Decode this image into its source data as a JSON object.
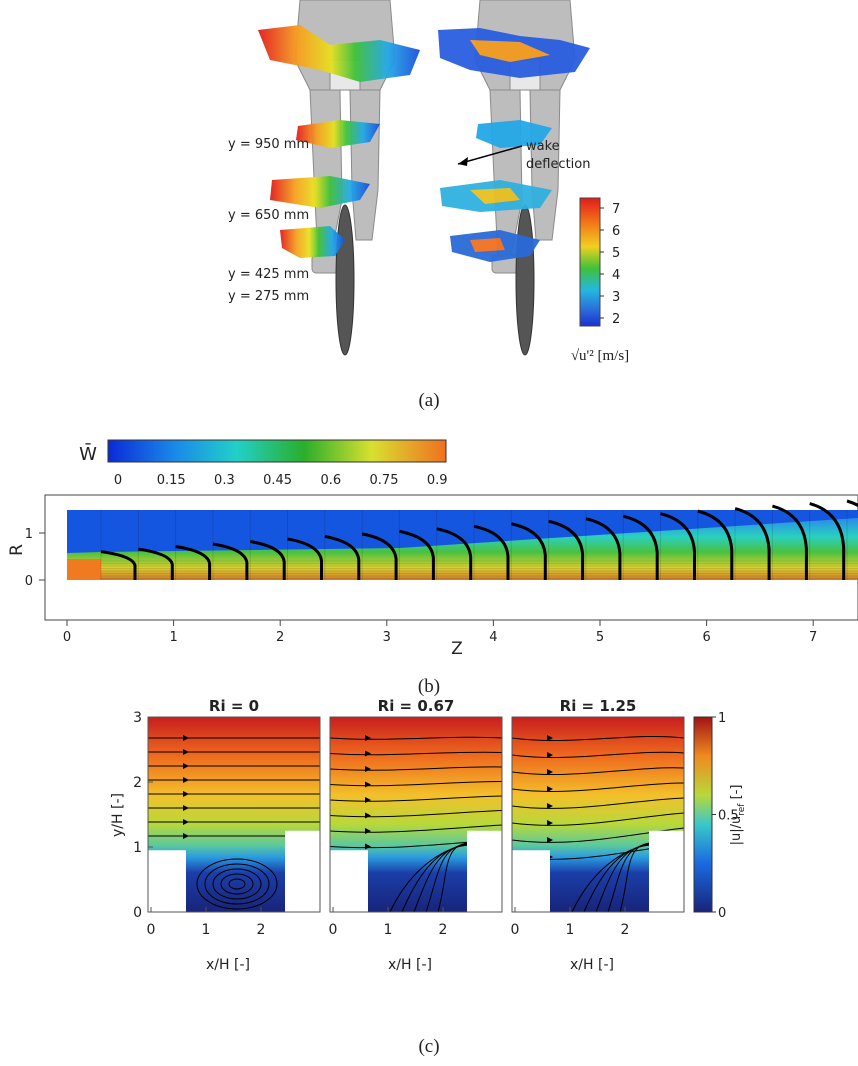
{
  "panel_a": {
    "wake_labels": [
      "y = 950 mm",
      "y = 650 mm",
      "y = 425 mm",
      "y = 275 mm"
    ],
    "annotation": [
      "wake",
      "deflection"
    ],
    "colorbar_ticks": [
      7,
      6,
      5,
      4,
      3,
      2
    ],
    "colorbar_label": "√u'²  [m/s]",
    "caption": "(a)"
  },
  "panel_b": {
    "colorbar_title": "W̄",
    "colorbar_ticks": [
      0,
      0.15,
      0.3,
      0.45,
      0.6,
      0.75,
      0.9
    ],
    "xlabel": "Z",
    "ylabel": "R",
    "xticks": [
      0,
      1,
      2,
      3,
      4,
      5,
      6,
      7
    ],
    "yticks": [
      0,
      1
    ],
    "caption": "(b)"
  },
  "panel_c": {
    "titles": [
      "Ri = 0",
      "Ri = 0.67",
      "Ri = 1.25"
    ],
    "ylabel": "y/H [-]",
    "xlabel": "x/H [-]",
    "yticks": [
      0,
      1,
      2,
      3
    ],
    "xticks": [
      0,
      1,
      2
    ],
    "colorbar_ticks": [
      0,
      0.5,
      1
    ],
    "colorbar_label": {
      "main": "|u|/u",
      "sub": "ref",
      "unit": " [-]"
    },
    "caption": "(c)"
  }
}
